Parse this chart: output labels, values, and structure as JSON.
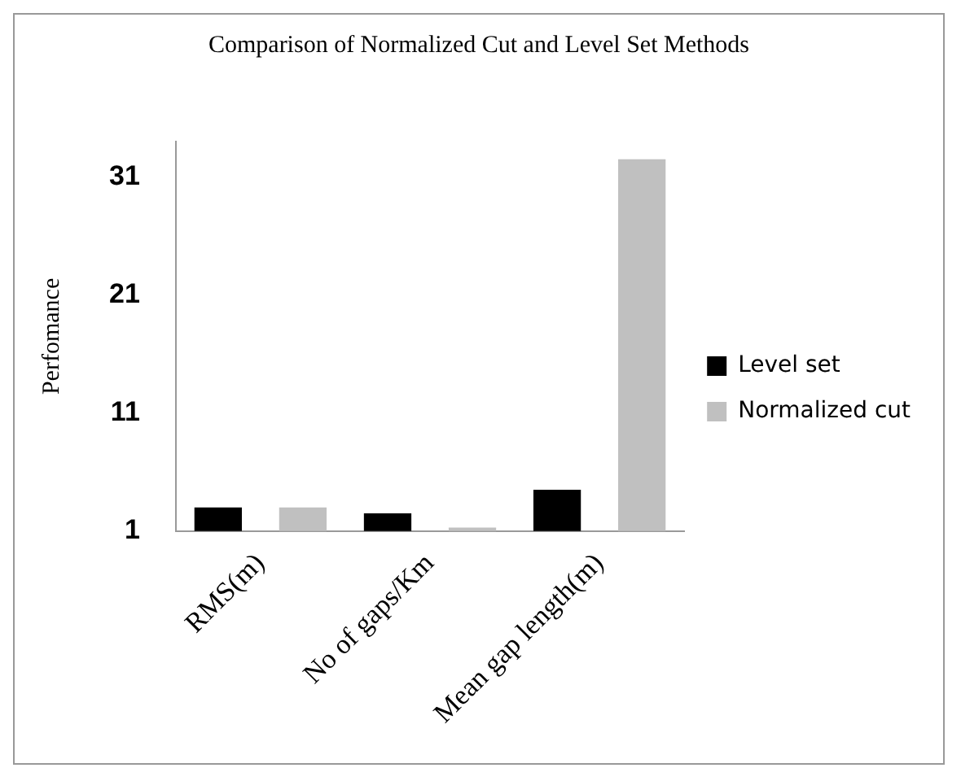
{
  "chart_data": {
    "type": "bar",
    "title": "Comparison of Normalized Cut and Level Set Methods",
    "ylabel": "Perfomance",
    "categories": [
      "RMS(m)",
      "No of gaps/Km",
      "Mean gap length(m)"
    ],
    "series": [
      {
        "name": "Level set",
        "color": "#000000",
        "values": [
          3,
          2.5,
          4.5
        ]
      },
      {
        "name": "Normalized cut",
        "color": "#c0c0c0",
        "values": [
          3,
          1.3,
          32.5
        ]
      }
    ],
    "ylim": [
      1,
      34
    ],
    "yticks": [
      1,
      11,
      21,
      31
    ],
    "grid": false,
    "legend": "right"
  }
}
